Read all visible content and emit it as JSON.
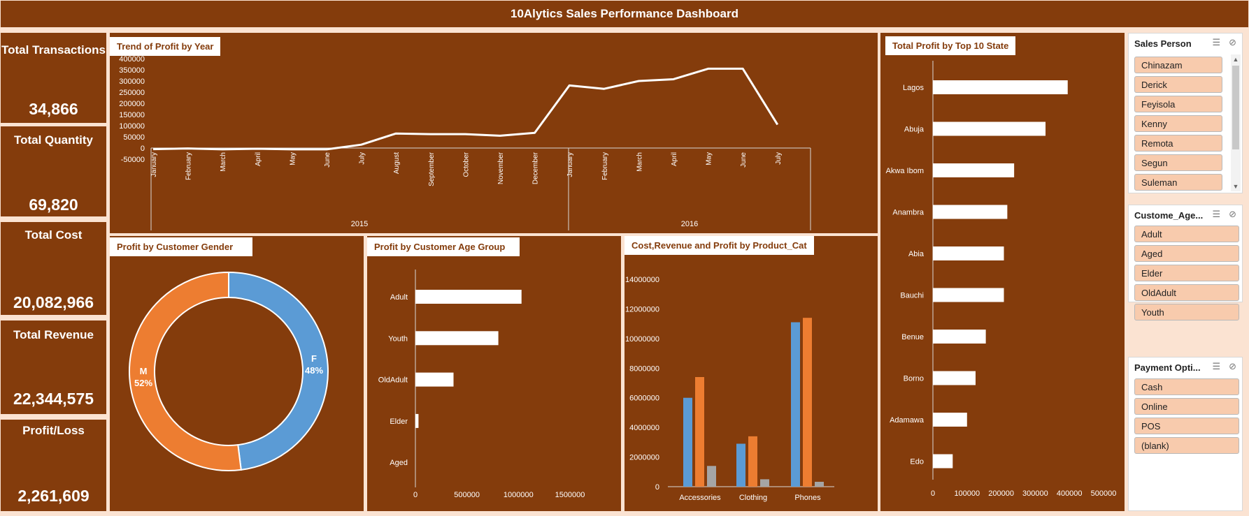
{
  "title": "10Alytics Sales Performance Dashboard",
  "kpis": [
    {
      "label": "Total Transactions",
      "value": "34,866"
    },
    {
      "label": "Total Quantity",
      "value": "69,820"
    },
    {
      "label": "Total Cost",
      "value": "20,082,966"
    },
    {
      "label": "Total Revenue",
      "value": "22,344,575"
    },
    {
      "label": "Profit/Loss",
      "value": "2,261,609"
    }
  ],
  "trend": {
    "title": "Trend of Profit by Year",
    "y_ticks": [
      "400000",
      "350000",
      "300000",
      "250000",
      "200000",
      "150000",
      "100000",
      "50000",
      "0",
      "-50000"
    ],
    "months": [
      "January",
      "February",
      "March",
      "April",
      "May",
      "June",
      "July",
      "August",
      "September",
      "October",
      "November",
      "December",
      "January",
      "February",
      "March",
      "April",
      "May",
      "June",
      "July"
    ],
    "years": [
      "2015",
      "2016"
    ]
  },
  "gender": {
    "title": "Profit by Customer Gender",
    "f_label": "F",
    "f_pct": "48%",
    "m_label": "M",
    "m_pct": "52%"
  },
  "age": {
    "title": "Profit by Customer Age Group",
    "x_ticks": [
      "0",
      "500000",
      "1000000",
      "1500000"
    ]
  },
  "product": {
    "title": "Cost,Revenue and Profit by Product_Cat",
    "y_ticks": [
      "14000000",
      "12000000",
      "10000000",
      "8000000",
      "6000000",
      "4000000",
      "2000000",
      "0"
    ]
  },
  "state": {
    "title": "Total Profit by Top 10 State",
    "x_ticks": [
      "0",
      "100000",
      "200000",
      "300000",
      "400000",
      "500000"
    ]
  },
  "chart_data": [
    {
      "type": "line",
      "title": "Trend of Profit by Year",
      "x": [
        "2015-01",
        "2015-02",
        "2015-03",
        "2015-04",
        "2015-05",
        "2015-06",
        "2015-07",
        "2015-08",
        "2015-09",
        "2015-10",
        "2015-11",
        "2015-12",
        "2016-01",
        "2016-02",
        "2016-03",
        "2016-04",
        "2016-05",
        "2016-06",
        "2016-07"
      ],
      "series": [
        {
          "values": [
            -5000,
            -2000,
            -6000,
            -3000,
            -6000,
            -6000,
            15000,
            65000,
            62000,
            62000,
            55000,
            68000,
            280000,
            265000,
            300000,
            308000,
            355000,
            355000,
            105000
          ]
        }
      ],
      "ylim": [
        -50000,
        400000
      ],
      "color": "#ffffff"
    },
    {
      "type": "pie",
      "title": "Profit by Customer Gender",
      "categories": [
        "F",
        "M"
      ],
      "values": [
        48,
        52
      ],
      "colors": [
        "#5b9bd5",
        "#ed7d31"
      ]
    },
    {
      "type": "bar",
      "title": "Profit by Customer Age Group",
      "categories": [
        "Adult",
        "Youth",
        "OldAdult",
        "Elder",
        "Aged"
      ],
      "values": [
        1030000,
        805000,
        370000,
        30000,
        0
      ],
      "xlim": [
        0,
        1500000
      ],
      "orientation": "horizontal"
    },
    {
      "type": "bar",
      "title": "Cost,Revenue and Profit by Product_Cat",
      "categories": [
        "Accessories",
        "Clothing",
        "Phones"
      ],
      "series": [
        {
          "values": [
            6000000,
            2900000,
            11100000
          ],
          "color": "#5b9bd5"
        },
        {
          "values": [
            7400000,
            3400000,
            11400000
          ],
          "color": "#ed7d31"
        },
        {
          "values": [
            1400000,
            500000,
            330000
          ],
          "color": "#a5a5a5"
        }
      ],
      "ylim": [
        0,
        14000000
      ]
    },
    {
      "type": "bar",
      "title": "Total Profit by Top 10 State",
      "categories": [
        "Lagos",
        "Abuja",
        "Akwa Ibom",
        "Anambra",
        "Abia",
        "Bauchi",
        "Benue",
        "Borno",
        "Adamawa",
        "Edo"
      ],
      "values": [
        395000,
        330000,
        238000,
        218000,
        208000,
        208000,
        155000,
        125000,
        100000,
        58000
      ],
      "xlim": [
        0,
        500000
      ],
      "orientation": "horizontal"
    }
  ],
  "slicers": [
    {
      "title": "Sales Person",
      "items": [
        "Chinazam",
        "Derick",
        "Feyisola",
        "Kenny",
        "Remota",
        "Segun",
        "Suleman"
      ]
    },
    {
      "title": "Custome_Age...",
      "items": [
        "Adult",
        "Aged",
        "Elder",
        "OldAdult",
        "Youth"
      ]
    },
    {
      "title": "Payment Opti...",
      "items": [
        "Cash",
        "Online",
        "POS",
        "(blank)"
      ]
    }
  ],
  "icons": {
    "multi_select": "multi-select-icon",
    "clear_filter": "clear-filter-icon"
  }
}
